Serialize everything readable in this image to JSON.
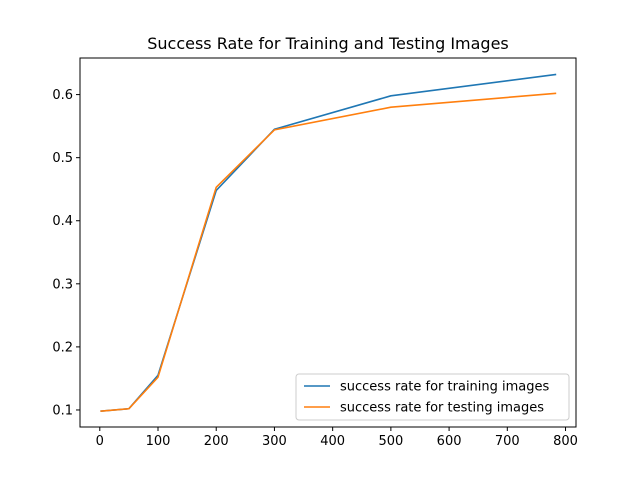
{
  "chart_data": {
    "type": "line",
    "title": "Success Rate for Training and Testing Images",
    "xlabel": "",
    "ylabel": "",
    "xlim": [
      -34,
      818
    ],
    "ylim": [
      0.073,
      0.658
    ],
    "xticks": [
      0,
      100,
      200,
      300,
      400,
      500,
      600,
      700,
      800
    ],
    "yticks": [
      0.1,
      0.2,
      0.3,
      0.4,
      0.5,
      0.6
    ],
    "grid": false,
    "legend_position": "lower-right",
    "series": [
      {
        "name": "success rate for training images",
        "color": "#1f77b4",
        "x": [
          1,
          50,
          100,
          200,
          300,
          500,
          784
        ],
        "y": [
          0.098,
          0.102,
          0.155,
          0.448,
          0.545,
          0.598,
          0.632
        ]
      },
      {
        "name": "success rate for testing images",
        "color": "#ff7f0e",
        "x": [
          1,
          50,
          100,
          200,
          300,
          500,
          784
        ],
        "y": [
          0.098,
          0.102,
          0.152,
          0.453,
          0.544,
          0.58,
          0.602
        ]
      }
    ]
  }
}
